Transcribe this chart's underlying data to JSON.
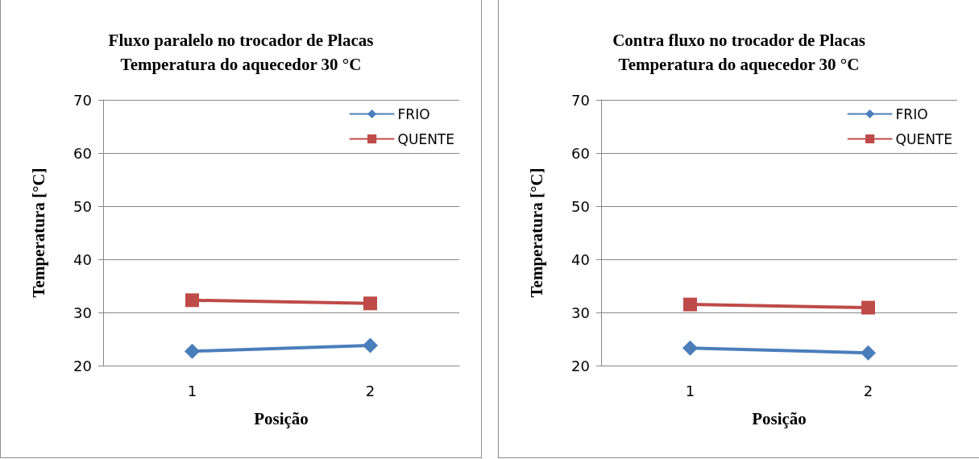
{
  "chart_data": [
    {
      "type": "line",
      "title": "Fluxo paralelo no trocador de Placas\nTemperatura do aquecedor 30 °C",
      "xlabel": "Posição",
      "ylabel": "Temperatura [°C]",
      "categories": [
        "1",
        "2"
      ],
      "series": [
        {
          "name": "FRIO",
          "color": "#4a7ebb",
          "marker": "diamond",
          "values": [
            22.7,
            23.8
          ]
        },
        {
          "name": "QUENTE",
          "color": "#be4b48",
          "marker": "square",
          "values": [
            32.3,
            31.7
          ]
        }
      ],
      "ylim": [
        20,
        70
      ],
      "yticks": [
        20,
        30,
        40,
        50,
        60,
        70
      ],
      "grid": "y",
      "legend": "top right",
      "line_style": "solid"
    },
    {
      "type": "line",
      "title": "Contra fluxo no trocador de Placas\nTemperatura do aquecedor 30 °C",
      "xlabel": "Posição",
      "ylabel": "Temperatura [°C]",
      "categories": [
        "1",
        "2"
      ],
      "series": [
        {
          "name": "FRIO",
          "color": "#4a7ebb",
          "marker": "diamond",
          "values": [
            23.3,
            22.4
          ]
        },
        {
          "name": "QUENTE",
          "color": "#be4b48",
          "marker": "square",
          "values": [
            31.5,
            30.9
          ]
        }
      ],
      "ylim": [
        20,
        70
      ],
      "yticks": [
        20,
        30,
        40,
        50,
        60,
        70
      ],
      "grid": "y",
      "legend": "top right",
      "line_style": "solid"
    }
  ]
}
